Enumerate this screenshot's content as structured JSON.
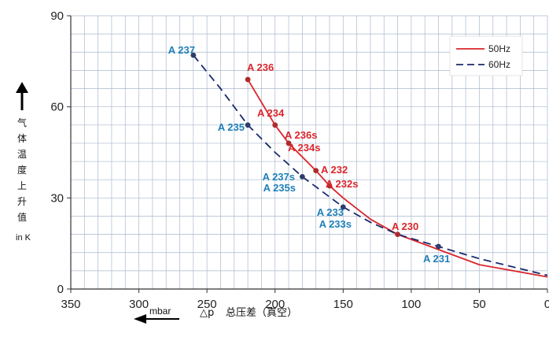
{
  "chart_data": {
    "type": "line",
    "x_range": [
      350,
      0
    ],
    "y_range": [
      0,
      90
    ],
    "x_ticks": [
      350,
      300,
      250,
      200,
      150,
      100,
      50,
      0
    ],
    "y_ticks": [
      0,
      30,
      60,
      90
    ],
    "grid": true,
    "legend_position": "top-right",
    "xlabel_unit": "mbar",
    "xlabel_symbol": "△p",
    "xlabel": "总压差（真空）",
    "ylabel": "气体温度上升值",
    "ylabel_unit": "in K",
    "colors": {
      "50Hz": "#d9262c",
      "60Hz": "#1b2a6b",
      "label_60Hz": "#1e7fb8"
    },
    "series": [
      {
        "name": "50Hz",
        "style": "solid",
        "x": [
          220,
          200,
          190,
          170,
          160,
          150,
          130,
          110,
          80,
          50,
          0
        ],
        "y": [
          69,
          54,
          48,
          39,
          34,
          30,
          23,
          18,
          13,
          8,
          4
        ]
      },
      {
        "name": "60Hz",
        "style": "dashed",
        "x": [
          260,
          240,
          220,
          200,
          180,
          150,
          130,
          110,
          80,
          50,
          0
        ],
        "y": [
          77,
          66,
          54,
          45,
          37,
          27,
          22,
          18,
          14,
          10,
          4.5
        ]
      }
    ],
    "points": [
      {
        "series": "50Hz",
        "x": 220,
        "y": 69
      },
      {
        "series": "50Hz",
        "x": 200,
        "y": 54
      },
      {
        "series": "50Hz",
        "x": 190,
        "y": 48
      },
      {
        "series": "50Hz",
        "x": 170,
        "y": 39
      },
      {
        "series": "50Hz",
        "x": 160,
        "y": 34
      },
      {
        "series": "50Hz",
        "x": 110,
        "y": 18
      },
      {
        "series": "60Hz",
        "x": 260,
        "y": 77
      },
      {
        "series": "60Hz",
        "x": 220,
        "y": 54
      },
      {
        "series": "60Hz",
        "x": 180,
        "y": 37
      },
      {
        "series": "60Hz",
        "x": 150,
        "y": 27
      },
      {
        "series": "60Hz",
        "x": 80,
        "y": 14
      }
    ],
    "annotations": [
      {
        "text": "A 236",
        "series": "50Hz"
      },
      {
        "text": "A 234",
        "series": "50Hz"
      },
      {
        "text": "A 236s",
        "series": "50Hz"
      },
      {
        "text": "A 234s",
        "series": "50Hz"
      },
      {
        "text": "A 232",
        "series": "50Hz"
      },
      {
        "text": "A 232s",
        "series": "50Hz"
      },
      {
        "text": "A 230",
        "series": "50Hz"
      },
      {
        "text": "A 237",
        "series": "60Hz"
      },
      {
        "text": "A 235",
        "series": "60Hz"
      },
      {
        "text": "A 237s",
        "series": "60Hz"
      },
      {
        "text": "A 235s",
        "series": "60Hz"
      },
      {
        "text": "A 233",
        "series": "60Hz"
      },
      {
        "text": "A 233s",
        "series": "60Hz"
      },
      {
        "text": "A 231",
        "series": "60Hz"
      }
    ]
  }
}
